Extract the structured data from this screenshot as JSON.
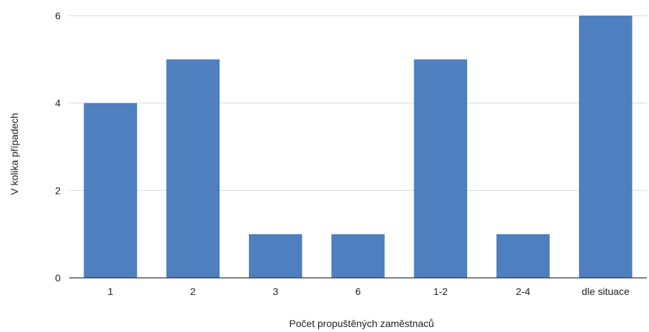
{
  "chart_data": {
    "type": "bar",
    "categories": [
      "1",
      "2",
      "3",
      "6",
      "1-2",
      "2-4",
      "dle situace"
    ],
    "values": [
      4,
      5,
      1,
      1,
      5,
      1,
      6
    ],
    "xlabel": "Počet propuštěných zaměstnaců",
    "ylabel": "V kolika případech",
    "ylim": [
      0,
      6
    ],
    "yticks": [
      0,
      2,
      4,
      6
    ],
    "grid": true,
    "legend": "none",
    "colors": {
      "bar": "#4e7fbe",
      "grid": "#d9d9d9",
      "axis": "#333333"
    }
  }
}
